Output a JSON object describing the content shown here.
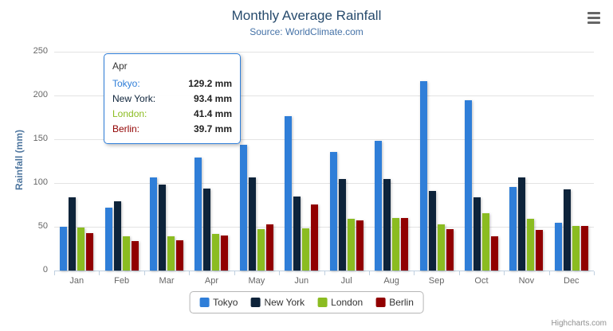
{
  "title": "Monthly Average Rainfall",
  "subtitle": "Source: WorldClimate.com",
  "credits": "Highcharts.com",
  "icons": {
    "menu": "hamburger-lines"
  },
  "tooltip": {
    "header": "Apr",
    "rows": [
      {
        "label": "Tokyo:",
        "value": "129.2 mm"
      },
      {
        "label": "New York:",
        "value": "93.4 mm"
      },
      {
        "label": "London:",
        "value": "41.4 mm"
      },
      {
        "label": "Berlin:",
        "value": "39.7 mm"
      }
    ]
  },
  "chart_data": {
    "type": "bar",
    "title": "Monthly Average Rainfall",
    "subtitle": "Source: WorldClimate.com",
    "xlabel": "",
    "ylabel": "Rainfall (mm)",
    "ylim": [
      0,
      250
    ],
    "yticks": [
      0,
      50,
      100,
      150,
      200,
      250
    ],
    "grid": true,
    "legend_position": "bottom",
    "categories": [
      "Jan",
      "Feb",
      "Mar",
      "Apr",
      "May",
      "Jun",
      "Jul",
      "Aug",
      "Sep",
      "Oct",
      "Nov",
      "Dec"
    ],
    "series": [
      {
        "name": "Tokyo",
        "color": "#2f7ed8",
        "values": [
          49.9,
          71.5,
          106.4,
          129.2,
          144.0,
          176.0,
          135.6,
          148.5,
          216.4,
          194.1,
          95.6,
          54.4
        ]
      },
      {
        "name": "New York",
        "color": "#0d233a",
        "values": [
          83.6,
          78.8,
          98.5,
          93.4,
          106.0,
          84.5,
          105.0,
          104.3,
          91.2,
          83.5,
          106.6,
          92.3
        ]
      },
      {
        "name": "London",
        "color": "#8bbc21",
        "values": [
          48.9,
          38.8,
          39.3,
          41.4,
          47.0,
          48.3,
          59.0,
          59.6,
          52.4,
          65.2,
          59.3,
          51.2
        ]
      },
      {
        "name": "Berlin",
        "color": "#910000",
        "values": [
          42.4,
          33.2,
          34.5,
          39.7,
          52.6,
          75.5,
          57.4,
          60.4,
          47.6,
          39.1,
          46.8,
          51.1
        ]
      }
    ]
  }
}
